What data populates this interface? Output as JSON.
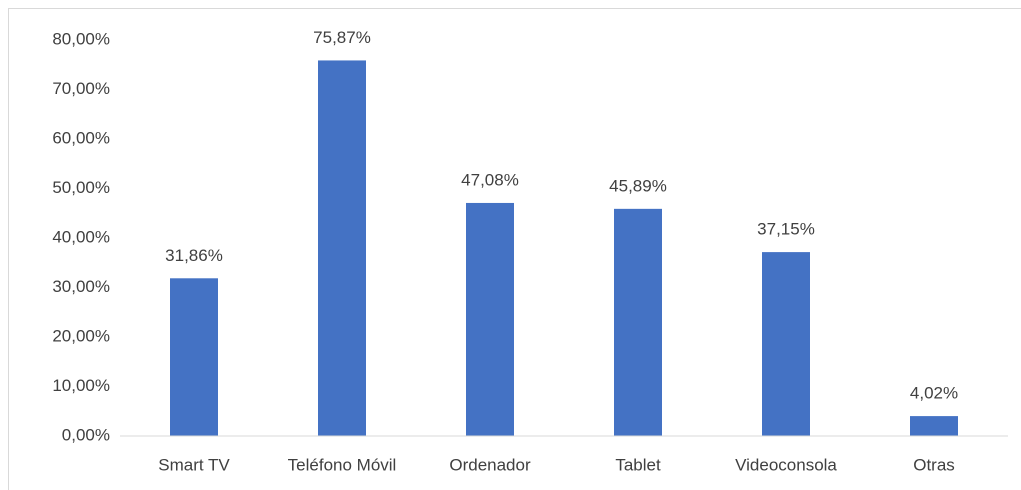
{
  "chart_data": {
    "type": "bar",
    "categories": [
      "Smart TV",
      "Teléfono Móvil",
      "Ordenador",
      "Tablet",
      "Videoconsola",
      "Otras"
    ],
    "values": [
      31.86,
      75.87,
      47.08,
      45.89,
      37.15,
      4.02
    ],
    "value_labels": [
      "31,86%",
      "75,87%",
      "47,08%",
      "45,89%",
      "37,15%",
      "4,02%"
    ],
    "color": "#4472c4",
    "ylim": [
      0,
      80
    ],
    "yticks": [
      {
        "value": 0,
        "label": "0,00%"
      },
      {
        "value": 10,
        "label": "10,00%"
      },
      {
        "value": 20,
        "label": "20,00%"
      },
      {
        "value": 30,
        "label": "30,00%"
      },
      {
        "value": 40,
        "label": "40,00%"
      },
      {
        "value": 50,
        "label": "50,00%"
      },
      {
        "value": 60,
        "label": "60,00%"
      },
      {
        "value": 70,
        "label": "70,00%"
      },
      {
        "value": 80,
        "label": "80,00%"
      }
    ],
    "grid": false
  }
}
